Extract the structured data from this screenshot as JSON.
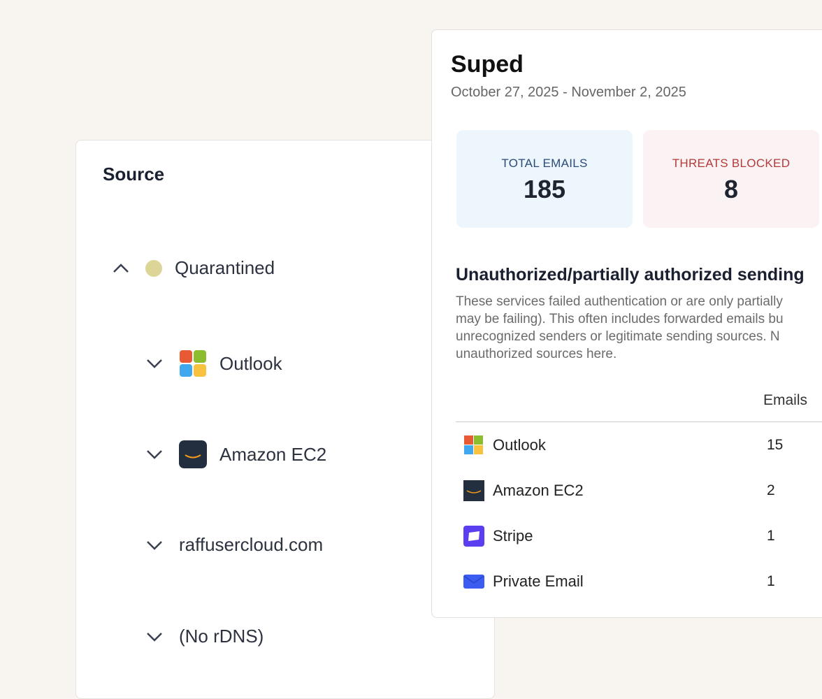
{
  "source_panel": {
    "title": "Source",
    "items": [
      {
        "label": "Quarantined",
        "expanded": true,
        "icon": "status-dot",
        "color": "#ddd597"
      },
      {
        "label": "Outlook",
        "expanded": false,
        "icon": "microsoft-icon"
      },
      {
        "label": "Amazon EC2",
        "expanded": false,
        "icon": "amazon-icon"
      },
      {
        "label": "raffusercloud.com",
        "expanded": false
      },
      {
        "label": "(No rDNS)",
        "expanded": false
      }
    ]
  },
  "report": {
    "title": "Suped",
    "date_range": "October 27, 2025 - November 2, 2025",
    "stats": [
      {
        "label": "TOTAL EMAILS",
        "value": "185",
        "color": "#2a4a7a",
        "bg": "#edf6fd"
      },
      {
        "label": "THREATS BLOCKED",
        "value": "8",
        "color": "#b33a3a",
        "bg": "#fbf3f3"
      }
    ],
    "section_title": "Unauthorized/partially authorized sending",
    "description_lines": [
      "These services failed authentication or are only partially",
      "may be failing). This often includes forwarded emails bu",
      "unrecognized senders or legitimate sending sources. N",
      "unauthorized sources here."
    ],
    "table": {
      "column": "Emails",
      "rows": [
        {
          "name": "Outlook",
          "emails": "15",
          "icon": "microsoft-icon"
        },
        {
          "name": "Amazon EC2",
          "emails": "2",
          "icon": "amazon-icon"
        },
        {
          "name": "Stripe",
          "emails": "1",
          "icon": "stripe-icon"
        },
        {
          "name": "Private Email",
          "emails": "1",
          "icon": "mail-icon"
        }
      ]
    }
  }
}
